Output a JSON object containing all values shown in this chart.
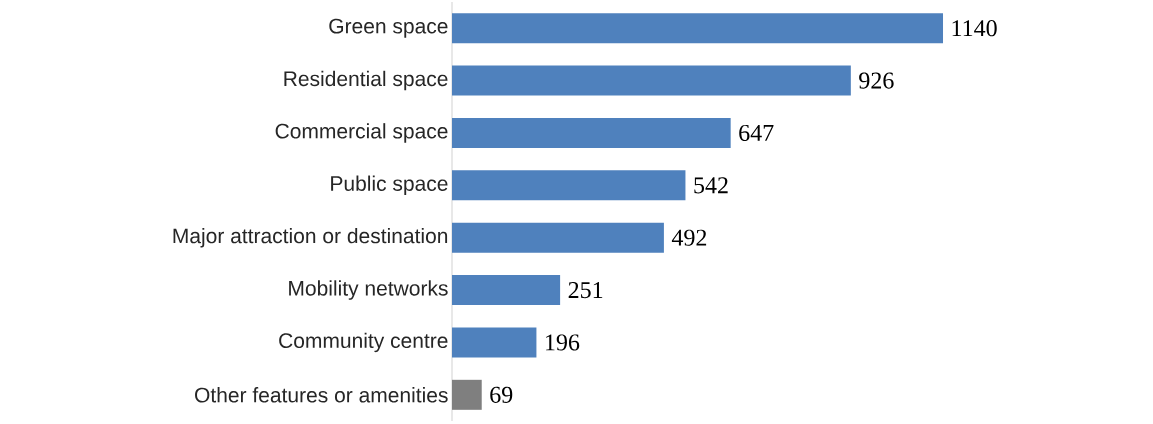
{
  "chart_data": {
    "type": "bar",
    "orientation": "horizontal",
    "categories": [
      "Green space",
      "Residential space",
      "Commercial space",
      "Public space",
      "Major attraction or destination",
      "Mobility networks",
      "Community centre",
      "Other features or amenities"
    ],
    "values": [
      1140,
      926,
      647,
      542,
      492,
      251,
      196,
      69
    ],
    "colors": [
      "#4f81bd",
      "#4f81bd",
      "#4f81bd",
      "#4f81bd",
      "#4f81bd",
      "#4f81bd",
      "#4f81bd",
      "#7f7f7f"
    ],
    "data_labels": true
  }
}
